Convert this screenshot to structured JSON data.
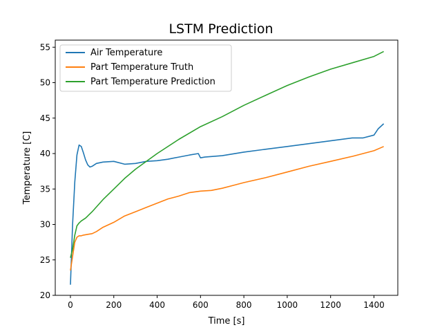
{
  "chart_data": {
    "type": "line",
    "title": "LSTM Prediction",
    "xlabel": "Time [s]",
    "ylabel": "Temperature [C]",
    "xlim": [
      -70,
      1510
    ],
    "ylim": [
      20,
      56
    ],
    "xticks": [
      0,
      200,
      400,
      600,
      800,
      1000,
      1200,
      1400
    ],
    "yticks": [
      20,
      25,
      30,
      35,
      40,
      45,
      50,
      55
    ],
    "grid": false,
    "legend_position": "top-left",
    "series": [
      {
        "name": "Air Temperature",
        "color": "#1f77b4",
        "x": [
          0,
          10,
          20,
          30,
          40,
          50,
          60,
          70,
          80,
          90,
          100,
          120,
          150,
          200,
          250,
          300,
          350,
          400,
          450,
          500,
          550,
          590,
          600,
          620,
          700,
          800,
          900,
          950,
          1000,
          1100,
          1200,
          1300,
          1350,
          1400,
          1420,
          1445
        ],
        "y": [
          21.5,
          30,
          36,
          39.8,
          41.2,
          41.0,
          40.1,
          39.1,
          38.4,
          38.1,
          38.2,
          38.6,
          38.8,
          38.9,
          38.5,
          38.6,
          38.9,
          39.0,
          39.2,
          39.5,
          39.8,
          40.0,
          39.4,
          39.5,
          39.7,
          40.2,
          40.6,
          40.8,
          41.0,
          41.4,
          41.8,
          42.2,
          42.2,
          42.6,
          43.5,
          44.2
        ]
      },
      {
        "name": "Part Temperature Truth",
        "color": "#ff7f0e",
        "x": [
          0,
          10,
          20,
          30,
          40,
          50,
          60,
          80,
          100,
          120,
          150,
          200,
          250,
          300,
          350,
          400,
          450,
          500,
          550,
          600,
          650,
          700,
          750,
          800,
          900,
          1000,
          1100,
          1200,
          1300,
          1400,
          1445
        ],
        "y": [
          23.5,
          25.5,
          27.5,
          28.2,
          28.4,
          28.4,
          28.5,
          28.6,
          28.7,
          29.0,
          29.6,
          30.3,
          31.2,
          31.8,
          32.4,
          33.0,
          33.6,
          34.0,
          34.5,
          34.7,
          34.8,
          35.1,
          35.5,
          35.9,
          36.6,
          37.4,
          38.2,
          38.9,
          39.6,
          40.4,
          41.0
        ]
      },
      {
        "name": "Part Temperature Prediction",
        "color": "#2ca02c",
        "x": [
          0,
          10,
          20,
          30,
          40,
          50,
          70,
          100,
          150,
          200,
          250,
          300,
          400,
          500,
          600,
          700,
          800,
          900,
          1000,
          1100,
          1200,
          1300,
          1400,
          1445
        ],
        "y": [
          25.3,
          26.5,
          28.5,
          29.8,
          30.2,
          30.5,
          30.9,
          31.8,
          33.5,
          35.0,
          36.5,
          37.8,
          40.0,
          42.0,
          43.8,
          45.2,
          46.8,
          48.2,
          49.6,
          50.8,
          51.9,
          52.8,
          53.7,
          54.4
        ]
      }
    ]
  }
}
